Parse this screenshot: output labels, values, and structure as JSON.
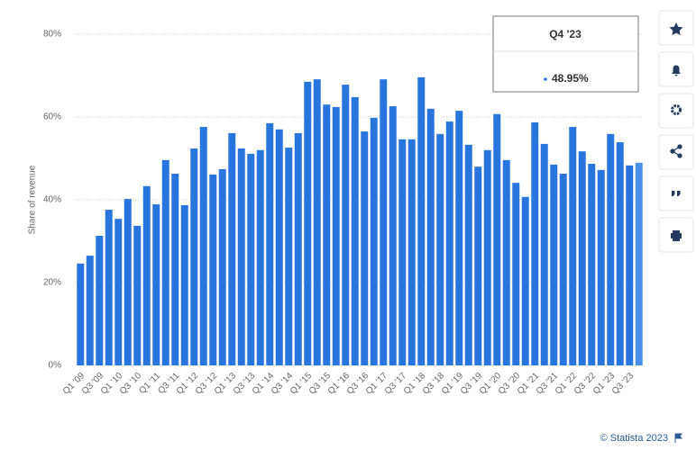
{
  "chart_data": {
    "type": "bar",
    "y_label": "Share of revenue",
    "categories": [
      "Q1 '09",
      null,
      "Q3 '09",
      null,
      "Q1 '10",
      null,
      "Q3 '10",
      null,
      "Q1 '11",
      null,
      "Q3 '11",
      null,
      "Q1 '12",
      null,
      "Q3 '12",
      null,
      "Q1 '13",
      null,
      "Q3 '13",
      null,
      "Q1 '14",
      null,
      "Q3 '14",
      null,
      "Q1 '15",
      null,
      "Q3 '15",
      null,
      "Q1 '16",
      null,
      "Q3 '16",
      null,
      "Q1 '17",
      null,
      "Q3 '17",
      null,
      "Q1 '18",
      null,
      "Q3 '18",
      null,
      "Q1 '19",
      null,
      "Q3 '19",
      null,
      "Q1 '20",
      null,
      "Q3 '20",
      null,
      "Q1 '21",
      null,
      "Q3 '21",
      null,
      "Q1 '22",
      null,
      "Q3 '22",
      null,
      "Q1 '23",
      null,
      "Q3 '23",
      null
    ],
    "values": [
      24.6,
      26.5,
      31.3,
      37.6,
      35.4,
      40.2,
      33.7,
      43.3,
      38.9,
      49.6,
      46.3,
      38.7,
      52.4,
      57.6,
      46.1,
      47.4,
      56.1,
      52.4,
      51.1,
      52.0,
      58.5,
      57.0,
      52.6,
      56.1,
      68.5,
      69.1,
      63.0,
      62.4,
      67.8,
      64.8,
      56.5,
      59.8,
      69.1,
      62.6,
      54.6,
      54.6,
      69.6,
      62.0,
      55.9,
      58.9,
      61.5,
      53.3,
      48.0,
      52.0,
      60.7,
      49.6,
      44.1,
      40.7,
      58.7,
      53.5,
      48.5,
      46.3,
      57.6,
      51.7,
      48.7,
      47.2,
      55.9,
      53.9,
      48.3,
      48.95
    ],
    "color": "#2876dd",
    "highlight_color": "#4a90e8",
    "ylim": [
      0,
      80
    ],
    "yticks": [
      {
        "value": 0,
        "label": "0%"
      },
      {
        "value": 20,
        "label": "20%"
      },
      {
        "value": 40,
        "label": "40%"
      },
      {
        "value": 60,
        "label": "60%"
      },
      {
        "value": 80,
        "label": "80%"
      }
    ],
    "grid": true,
    "tooltip": {
      "category": "Q4 '23",
      "value": "48.95%"
    },
    "footer": "© Statista 2023"
  }
}
